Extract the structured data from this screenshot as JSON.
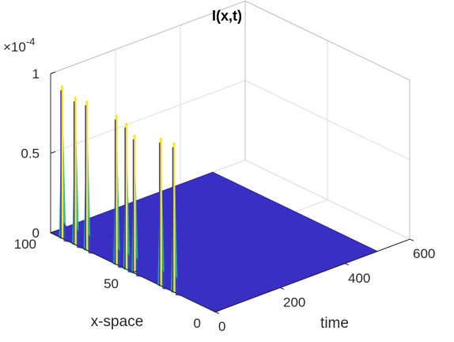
{
  "chart_data": {
    "type": "surface",
    "title": "I(x,t)",
    "xlabel": "time",
    "ylabel": "x-space",
    "zlabel": "",
    "x_ticks": [
      "0",
      "200",
      "400",
      "600"
    ],
    "y_ticks": [
      "0",
      "50",
      "100"
    ],
    "z_ticks": [
      "0",
      "0.5",
      "1"
    ],
    "z_exponent": "×10",
    "z_exponent_power": "-4",
    "xlim": [
      0,
      600
    ],
    "ylim": [
      0,
      100
    ],
    "zlim": [
      0,
      0.0001
    ],
    "surface_extent": {
      "time": [
        0,
        500
      ],
      "x": [
        0,
        100
      ]
    },
    "spikes": [
      {
        "x": 93,
        "time": 0,
        "value": 9.6e-05
      },
      {
        "x": 85,
        "time": 0,
        "value": 9.3e-05
      },
      {
        "x": 78,
        "time": 0,
        "value": 9.4e-05
      },
      {
        "x": 60,
        "time": 0,
        "value": 9.4e-05
      },
      {
        "x": 54,
        "time": 0,
        "value": 9.2e-05
      },
      {
        "x": 49,
        "time": 0,
        "value": 8.7e-05
      },
      {
        "x": 33,
        "time": 0,
        "value": 9.3e-05
      },
      {
        "x": 25,
        "time": 0,
        "value": 9.4e-05
      }
    ],
    "grid": true,
    "colors": {
      "surface": "#3a2fc4",
      "spike_high": "#f8e81c",
      "spike_mid": "#22b49a",
      "grid": "#dcdcdc",
      "axis": "#262626"
    }
  }
}
